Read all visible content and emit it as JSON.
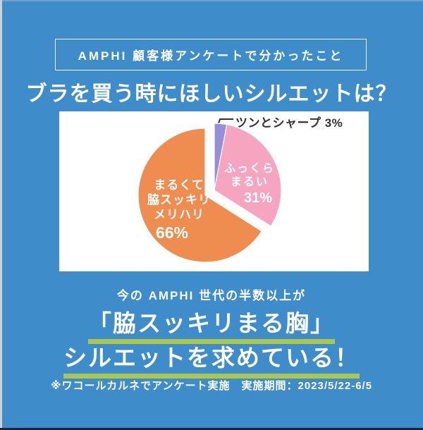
{
  "page": {
    "badge": "AMPHI 顧客様アンケートで分かったこと",
    "title": "ブラを買う時にほしいシルエットは？",
    "conclusion_intro": "今の AMPHI 世代の半数以上が",
    "conclusion_line1": "「脇スッキリまる胸」",
    "conclusion_line2": "シルエットを求めている！",
    "footnote": "※ワコールカルネでアンケート実施　実施期間：2023/5/22-6/5"
  },
  "colors": {
    "background_blue": "#3E8CC9",
    "panel_white": "#FFFFFF",
    "underline_green": "#ABC74E",
    "callout_text": "#333333",
    "slice_orange": "#EF8C4F",
    "slice_pink": "#F5A5C0",
    "slice_purple": "#968FD8"
  },
  "chart_data": {
    "type": "pie",
    "title": "ブラを買う時にほしいシルエットは？",
    "unit": "%",
    "start_angle": "top",
    "direction": "clockwise",
    "legend": "none",
    "label_position": "inside",
    "slices": [
      {
        "id": "sharp",
        "label": "ツンとシャープ",
        "value": 3,
        "pct_display": "3%",
        "callout_display": "ツンとシャープ 3%",
        "color": "#968FD8",
        "exploded": true
      },
      {
        "id": "fluffy-round",
        "label": "ふっくらまるい",
        "label_lines": [
          "ふっくら",
          "まるい"
        ],
        "value": 31,
        "pct_display": "31%",
        "color": "#F5A5C0",
        "exploded": true
      },
      {
        "id": "round-sleek",
        "label": "まるくて脇スッキリメリハリ",
        "label_lines": [
          "まるくて",
          "脇スッキリ",
          "メリハリ"
        ],
        "value": 66,
        "pct_display": "66%",
        "color": "#EF8C4F",
        "exploded": false
      }
    ]
  }
}
